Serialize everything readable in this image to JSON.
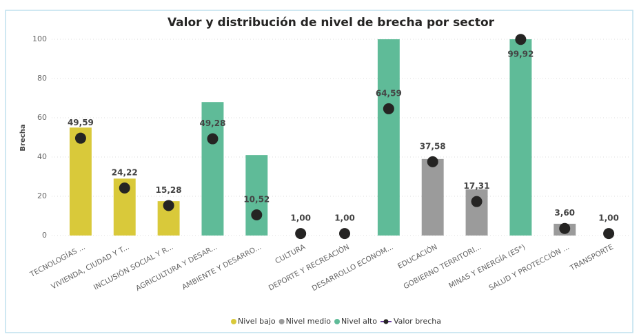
{
  "chart_data": {
    "type": "bar",
    "title": "Valor y distribución de nivel de brecha por sector",
    "y_label": "Brecha",
    "categories": [
      "TECNOLOGÍAS ...",
      "VIVIENDA, CIUDAD Y T...",
      "INCLUSIÓN SOCIAL Y R...",
      "AGRICULTURA Y DESAR...",
      "AMBIENTE Y DESARRO...",
      "CULTURA",
      "DEPORTE Y RECREACIÓN",
      "DESARROLLO ECONOM...",
      "EDUCACIÓN",
      "GOBIERNO TERRITORI...",
      "MINAS Y ENERGÍA (ES*)",
      "SALUD Y PROTECCIÓN ...",
      "TRANSPORTE"
    ],
    "series": [
      {
        "name": "Nivel bajo",
        "color": "#d9c93a",
        "values": [
          55,
          29,
          17.5,
          null,
          null,
          null,
          null,
          null,
          null,
          null,
          null,
          null,
          null
        ]
      },
      {
        "name": "Nivel medio",
        "color": "#9b9b9b",
        "values": [
          null,
          null,
          null,
          null,
          null,
          null,
          null,
          null,
          39,
          23.5,
          null,
          6,
          null
        ]
      },
      {
        "name": "Nivel alto",
        "color": "#5fbb98",
        "values": [
          null,
          null,
          null,
          68,
          41,
          null,
          null,
          100,
          null,
          null,
          100,
          null,
          null
        ]
      },
      {
        "name": "Valor brecha",
        "type": "scatter",
        "color": "#252423",
        "line_color": "#6b3fa0",
        "values": [
          49.59,
          24.22,
          15.28,
          49.28,
          10.52,
          1.0,
          1.0,
          64.59,
          37.58,
          17.31,
          99.92,
          3.6,
          1.0
        ],
        "value_labels": [
          "49,59",
          "24,22",
          "15,28",
          "49,28",
          "10,52",
          "1,00",
          "1,00",
          "64,59",
          "37,58",
          "17,31",
          "99,92",
          "3,60",
          "1,00"
        ]
      }
    ],
    "ylim": [
      0,
      100
    ],
    "yticks": [
      0,
      20,
      40,
      60,
      80,
      100
    ],
    "grid": true,
    "legend": "bottom"
  }
}
